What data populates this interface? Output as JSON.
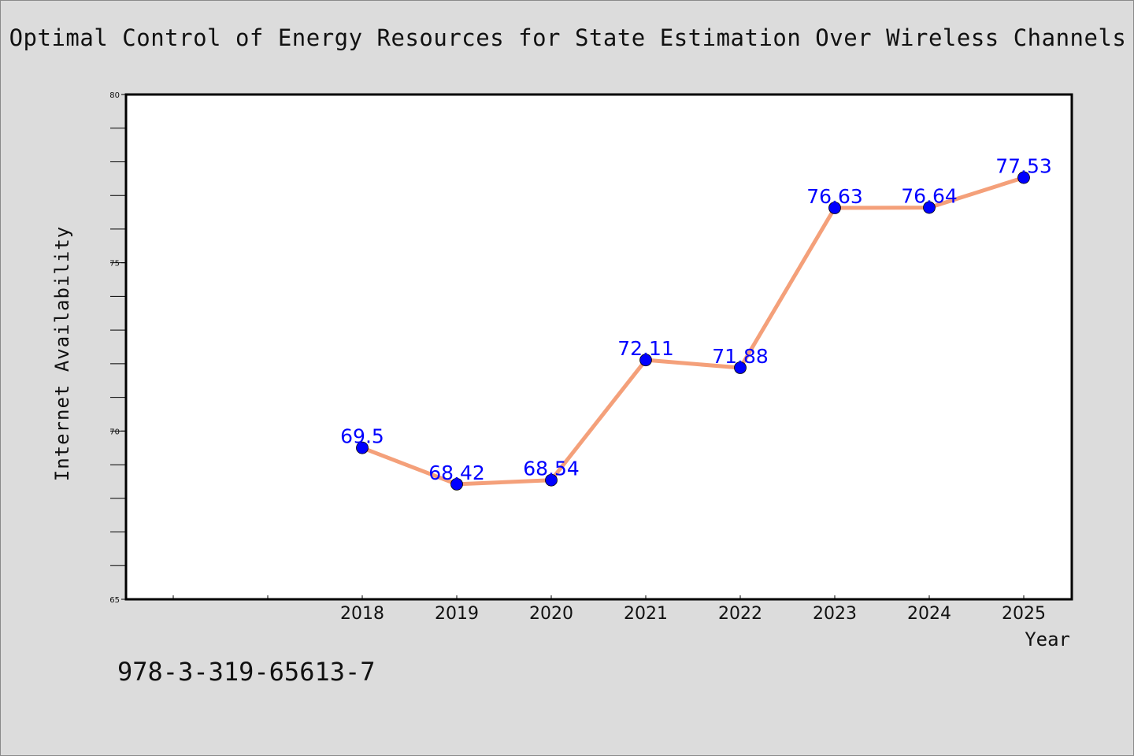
{
  "title": "Optimal Control of Energy Resources for State Estimation Over Wireless Channels",
  "footer_code": "978-3-319-65613-7",
  "chart_data": {
    "type": "line",
    "title": "Optimal Control of Energy Resources for State Estimation Over Wireless Channels",
    "xlabel": "Year",
    "ylabel": "Internet Availability",
    "categories": [
      "2018",
      "2019",
      "2020",
      "2021",
      "2022",
      "2023",
      "2024",
      "2025"
    ],
    "values": [
      69.5,
      68.42,
      68.54,
      72.11,
      71.88,
      76.63,
      76.64,
      77.53
    ],
    "data_labels": [
      "69.5",
      "68.42",
      "68.54",
      "72.11",
      "71.88",
      "76.63",
      "76.64",
      "77.53"
    ],
    "ylim": [
      65,
      80
    ],
    "y_major_ticks": [
      65,
      70,
      75,
      80
    ],
    "y_minor_step": 1,
    "grid": false,
    "line_color": "#f4a07a",
    "marker_color": "#0000ff",
    "label_color": "#0000ff"
  }
}
